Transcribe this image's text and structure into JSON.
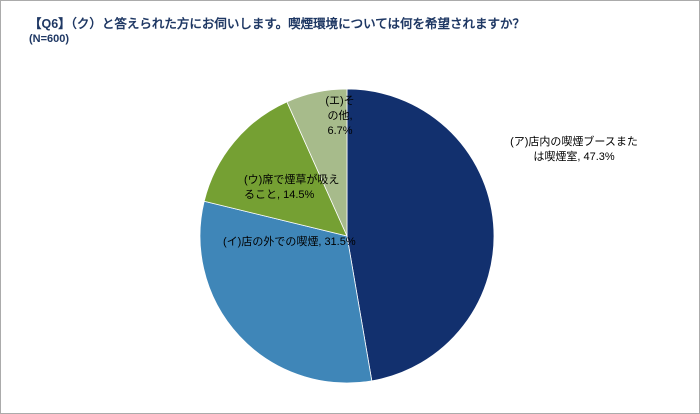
{
  "header": {
    "title": "【Q6】（ク）と答えられた方にお伺いします。喫煙環境については何を希望されますか？",
    "subtitle": "(N=600)",
    "text_color": "#1F3864"
  },
  "chart_data": {
    "type": "pie",
    "start_angle_deg": 0,
    "direction": "clockwise",
    "legend": "none",
    "label_text_color": "#000000",
    "total": 100,
    "slices": [
      {
        "label": "(ア)店内の喫煙ブースまたは喫煙室",
        "value": 47.3,
        "display": "(ア)店内の喫煙ブースまたは喫煙室, 47.3%",
        "color": "#12306E",
        "label_lines": [
          "(ア)店内の喫煙ブースまた",
          "は喫煙室, 47.3%"
        ]
      },
      {
        "label": "(イ)店の外での喫煙",
        "value": 31.5,
        "display": "(イ)店の外での喫煙, 31.5%",
        "color": "#3F86B8",
        "label_lines": [
          "(イ)店の外での喫煙, 31.5%"
        ]
      },
      {
        "label": "(ウ)席で煙草が吸えること",
        "value": 14.5,
        "display": "(ウ)席で煙草が吸えること, 14.5%",
        "color": "#75A033",
        "label_lines": [
          "(ウ)席で煙草が吸え",
          "ること, 14.5%"
        ]
      },
      {
        "label": "(エ)その他",
        "value": 6.7,
        "display": "(エ)その他, 6.7%",
        "color": "#A7BB8B",
        "label_lines": [
          "(エ)そ",
          "の他,",
          "6.7%"
        ]
      }
    ]
  }
}
